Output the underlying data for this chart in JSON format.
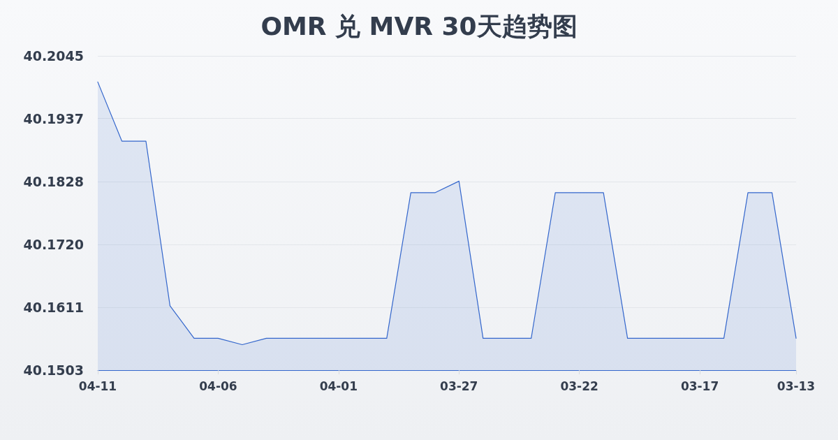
{
  "chart_data": {
    "type": "area",
    "title": "OMR 兑 MVR 30天趋势图",
    "categories": [
      "04-11",
      null,
      null,
      null,
      null,
      "04-06",
      null,
      null,
      null,
      null,
      "04-01",
      null,
      null,
      null,
      null,
      "03-27",
      null,
      null,
      null,
      null,
      "03-22",
      null,
      null,
      null,
      null,
      "03-17",
      null,
      null,
      null,
      "03-13"
    ],
    "series": [
      {
        "color": "#3366cc",
        "values": [
          40.2,
          40.1898,
          40.1898,
          40.1614,
          40.1558,
          40.1558,
          40.1547,
          40.1558,
          40.1558,
          40.1558,
          40.1558,
          40.1558,
          40.1558,
          40.1809,
          40.1809,
          40.1829,
          40.1558,
          40.1558,
          40.1558,
          40.1809,
          40.1809,
          40.1809,
          40.1558,
          40.1558,
          40.1558,
          40.1558,
          40.1558,
          40.1809,
          40.1809,
          40.1558
        ]
      }
    ],
    "ylim": [
      40.1503,
      40.2045
    ],
    "yticks": [
      40.1503,
      40.1611,
      {
        "value": 40.172,
        "label": "40.1720"
      },
      40.1828,
      40.1937,
      40.2045
    ],
    "grid": "y",
    "marker": "none",
    "line_style": "solid"
  }
}
